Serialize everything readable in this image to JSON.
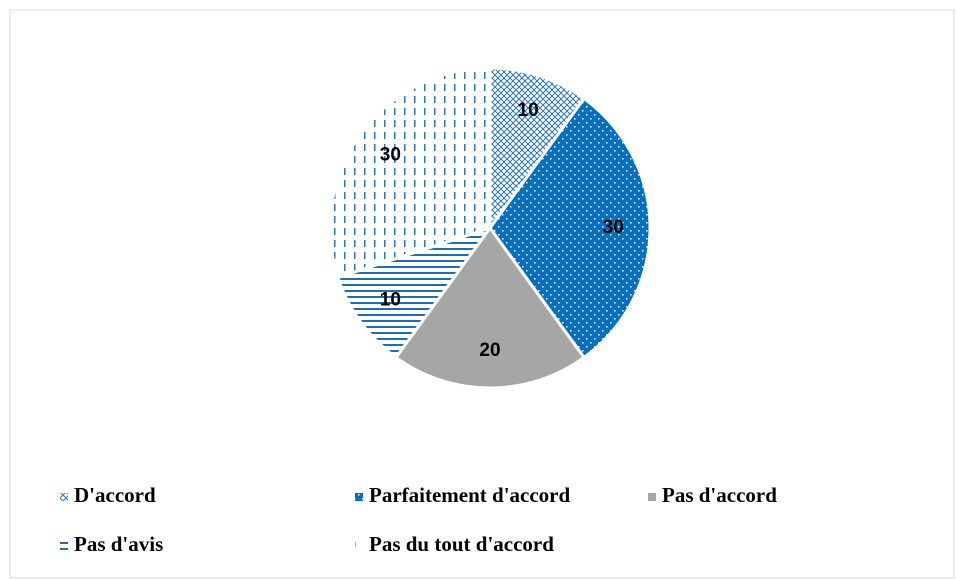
{
  "chart_data": {
    "type": "pie",
    "categories": [
      "D'accord",
      "Parfaitement d'accord",
      "Pas d'accord",
      "Pas d'avis",
      "Pas du tout d'accord"
    ],
    "values": [
      10,
      30,
      20,
      10,
      30
    ],
    "colors": [
      "#2e75b6",
      "#0070c0",
      "#a6a6a6",
      "#1f6fb0",
      "#2e75b6"
    ],
    "patterns": [
      "crosshatch",
      "dots",
      "solid",
      "hlines",
      "vdashes"
    ],
    "legend": "bottom"
  }
}
